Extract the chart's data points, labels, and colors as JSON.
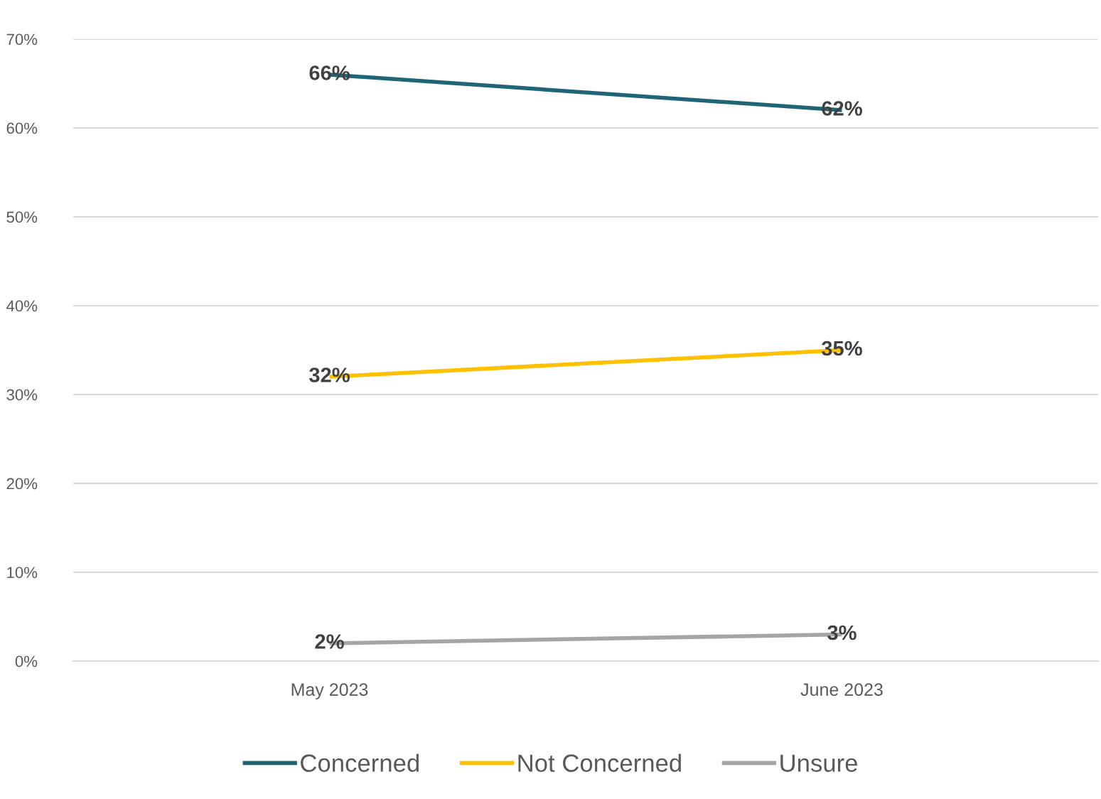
{
  "chart_data": {
    "type": "line",
    "categories": [
      "May 2023",
      "June 2023"
    ],
    "series": [
      {
        "name": "Concerned",
        "color": "#1f6477",
        "values": [
          66,
          62
        ],
        "value_labels": [
          "66%",
          "62%"
        ]
      },
      {
        "name": "Not Concerned",
        "color": "#ffc000",
        "values": [
          32,
          35
        ],
        "value_labels": [
          "32%",
          "35%"
        ]
      },
      {
        "name": "Unsure",
        "color": "#a5a5a5",
        "values": [
          2,
          3
        ],
        "value_labels": [
          "2%",
          "3%"
        ]
      }
    ],
    "ylim": [
      0,
      70
    ],
    "yticks": [
      {
        "value": 0,
        "label": "0%"
      },
      {
        "value": 10,
        "label": "10%"
      },
      {
        "value": 20,
        "label": "20%"
      },
      {
        "value": 30,
        "label": "30%"
      },
      {
        "value": 40,
        "label": "40%"
      },
      {
        "value": 50,
        "label": "50%"
      },
      {
        "value": 60,
        "label": "60%"
      },
      {
        "value": 70,
        "label": "70%"
      }
    ],
    "grid": "y",
    "legend": "bottom",
    "marker": "none",
    "line_style": "solid"
  }
}
